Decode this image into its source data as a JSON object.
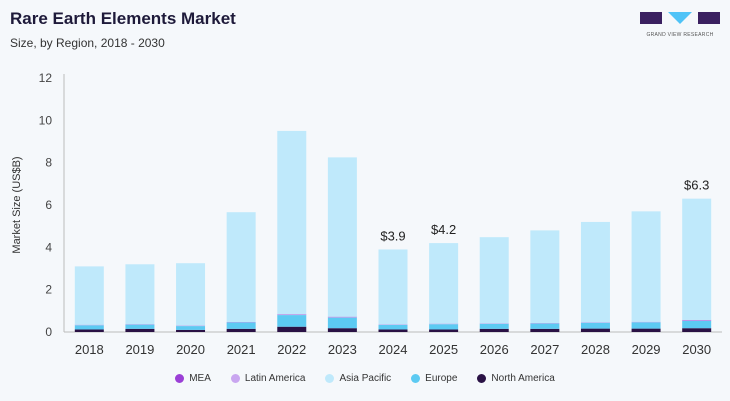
{
  "header": {
    "title": "Rare Earth Elements Market",
    "subtitle": "Size, by Region, 2018 - 2030",
    "logo_text": "GRAND VIEW RESEARCH"
  },
  "chart_data": {
    "type": "bar",
    "stacked": true,
    "ylabel": "Market Size (US$B)",
    "ylim": [
      0,
      12
    ],
    "yticks": [
      0,
      2,
      4,
      6,
      8,
      10,
      12
    ],
    "grid": false,
    "legend_position": "bottom",
    "categories": [
      "2018",
      "2019",
      "2020",
      "2021",
      "2022",
      "2023",
      "2024",
      "2025",
      "2026",
      "2027",
      "2028",
      "2029",
      "2030"
    ],
    "series": [
      {
        "name": "North America",
        "color": "#2a1245",
        "values": [
          0.12,
          0.15,
          0.1,
          0.15,
          0.25,
          0.18,
          0.12,
          0.12,
          0.15,
          0.15,
          0.16,
          0.16,
          0.18
        ]
      },
      {
        "name": "Europe",
        "color": "#5ccaf2",
        "values": [
          0.2,
          0.2,
          0.18,
          0.3,
          0.55,
          0.5,
          0.22,
          0.25,
          0.24,
          0.25,
          0.28,
          0.3,
          0.35
        ]
      },
      {
        "name": "Latin America",
        "color": "#c9a6f0",
        "values": [
          0.01,
          0.01,
          0.01,
          0.01,
          0.02,
          0.02,
          0.01,
          0.01,
          0.01,
          0.01,
          0.01,
          0.01,
          0.02
        ]
      },
      {
        "name": "MEA",
        "color": "#9b3fd6",
        "values": [
          0.01,
          0.01,
          0.01,
          0.01,
          0.02,
          0.02,
          0.01,
          0.01,
          0.01,
          0.01,
          0.01,
          0.01,
          0.02
        ]
      },
      {
        "name": "Asia Pacific",
        "color": "#bfe9fb",
        "values": [
          2.76,
          2.83,
          2.95,
          5.19,
          8.66,
          7.53,
          3.54,
          3.81,
          4.07,
          4.38,
          4.74,
          5.22,
          5.73
        ]
      }
    ],
    "data_labels": [
      {
        "category": "2024",
        "text": "$3.9",
        "value": 3.9
      },
      {
        "category": "2025",
        "text": "$4.2",
        "value": 4.2
      },
      {
        "category": "2030",
        "text": "$6.3",
        "value": 6.3
      }
    ],
    "legend_order": [
      "MEA",
      "Latin America",
      "Asia Pacific",
      "Europe",
      "North America"
    ]
  }
}
